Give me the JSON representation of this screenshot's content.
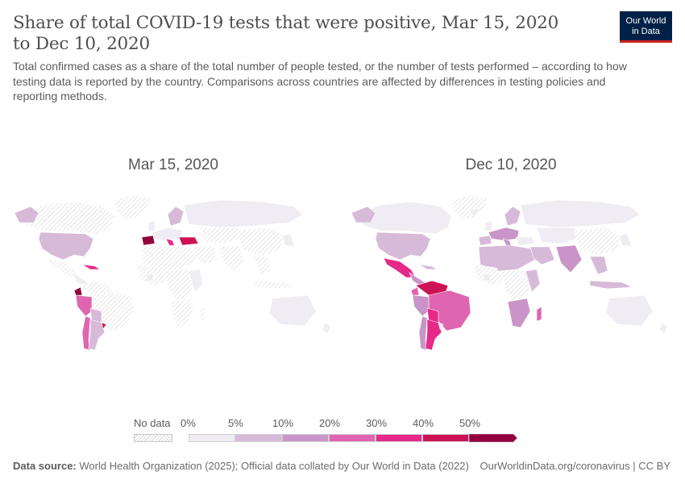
{
  "header": {
    "title": "Share of total COVID-19 tests that were positive, Mar 15, 2020 to Dec 10, 2020",
    "logo_line1": "Our World",
    "logo_line2": "in Data",
    "subtitle": "Total confirmed cases as a share of the total number of people tested, or the number of tests performed – according to how testing data is reported by the country. Comparisons across countries are affected by differences in testing policies and reporting methods."
  },
  "maps": [
    {
      "date_label": "Mar 15, 2020"
    },
    {
      "date_label": "Dec 10, 2020"
    }
  ],
  "legend": {
    "no_data_label": "No data",
    "bins": [
      {
        "label": "0%"
      },
      {
        "label": "5%"
      },
      {
        "label": "10%"
      },
      {
        "label": "20%"
      },
      {
        "label": "30%"
      },
      {
        "label": "40%"
      },
      {
        "label": "50%"
      }
    ],
    "colors": [
      "#f0ecf3",
      "#d7b9d8",
      "#c994c7",
      "#df65b0",
      "#e7298a",
      "#ce1256",
      "#91003f"
    ],
    "no_data_color": "#e8e8e8"
  },
  "footer": {
    "source_label": "Data source:",
    "source_text": "World Health Organization (2025); Official data collated by Our World in Data (2022)",
    "url_text": "OurWorldinData.org/coronavirus | CC BY"
  }
}
